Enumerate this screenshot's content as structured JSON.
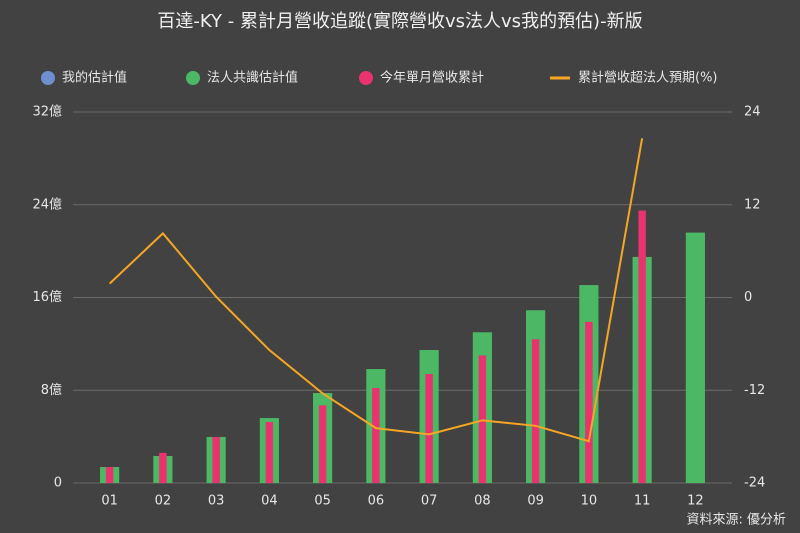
{
  "chart_data": {
    "type": "bar-line",
    "title": "百達-KY - 累計月營收追蹤(實際營收vs法人vs我的預估)-新版",
    "source": "資料來源: 優分析",
    "categories": [
      "01",
      "02",
      "03",
      "04",
      "05",
      "06",
      "07",
      "08",
      "09",
      "10",
      "11",
      "12"
    ],
    "series": [
      {
        "name": "我的估計值",
        "color": "#6f8fd0",
        "kind": "bar",
        "values": [
          null,
          null,
          null,
          null,
          null,
          null,
          null,
          null,
          null,
          null,
          null,
          null
        ]
      },
      {
        "name": "法人共識估計值",
        "color": "#4cb865",
        "kind": "bar",
        "values": [
          1.38,
          2.33,
          3.97,
          5.6,
          7.76,
          9.83,
          11.47,
          13.0,
          14.9,
          17.07,
          19.5,
          21.6
        ]
      },
      {
        "name": "今年單月營收累計",
        "color": "#e8336f",
        "kind": "bar",
        "values": [
          1.38,
          2.6,
          3.97,
          5.26,
          6.7,
          8.2,
          9.4,
          11.0,
          12.4,
          13.9,
          23.5,
          null
        ]
      },
      {
        "name": "累計營收超法人預期(%)",
        "color": "#f5a623",
        "kind": "line",
        "axis": "y2",
        "values": [
          1.8,
          8.3,
          0.1,
          -6.8,
          -12.4,
          -16.9,
          -17.7,
          -15.9,
          -16.6,
          -18.6,
          20.6,
          null
        ]
      }
    ],
    "ylim": [
      0,
      32
    ],
    "yticks": [
      0,
      {
        "value": 8,
        "label": "8億"
      },
      {
        "value": 16,
        "label": "16億"
      },
      {
        "value": 24,
        "label": "24億"
      },
      {
        "value": 32,
        "label": "32億"
      }
    ],
    "y2lim": [
      -24,
      24
    ],
    "y2ticks": [
      -24,
      -12,
      0,
      12,
      24
    ],
    "grid": true,
    "legend": "top"
  }
}
